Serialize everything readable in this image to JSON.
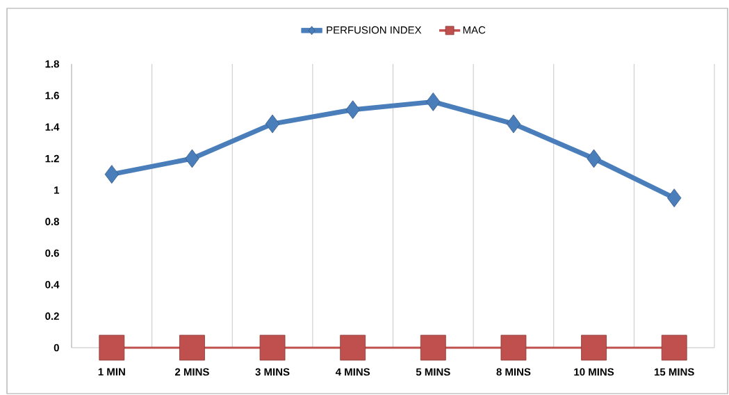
{
  "chart_data": {
    "type": "line",
    "categories": [
      "1 MIN",
      "2 MINS",
      "3 MINS",
      "4 MINS",
      "5 MINS",
      "8 MINS",
      "10 MINS",
      "15 MINS"
    ],
    "series": [
      {
        "name": "PERFUSION INDEX",
        "color": "#4a7ebb",
        "marker": "diamond",
        "values": [
          1.1,
          1.2,
          1.42,
          1.51,
          1.56,
          1.42,
          1.2,
          0.95
        ]
      },
      {
        "name": "MAC",
        "color": "#c0504d",
        "marker": "square",
        "values": [
          0,
          0,
          0,
          0,
          0,
          0,
          0,
          0
        ]
      }
    ],
    "ylim": [
      0,
      1.8
    ],
    "yticks": [
      0,
      0.2,
      0.4,
      0.6,
      0.8,
      1,
      1.2,
      1.4,
      1.6,
      1.8
    ],
    "grid": "x",
    "legend": "top",
    "line_style": "solid"
  }
}
